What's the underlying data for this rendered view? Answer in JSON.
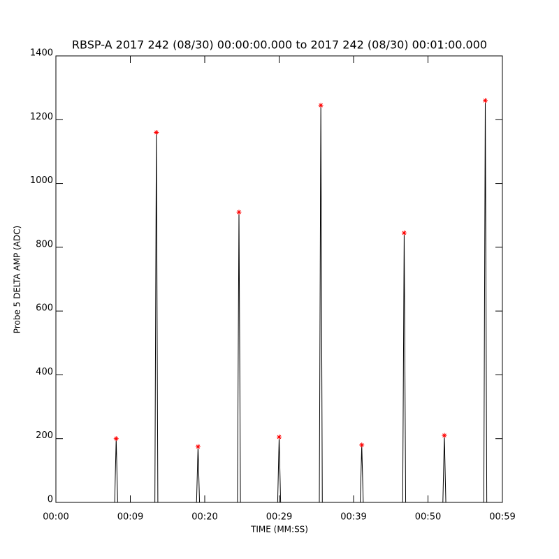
{
  "chart_data": {
    "type": "line",
    "title": "RBSP-A 2017 242 (08/30) 00:00:00.000 to 2017 242 (08/30) 00:01:00.000",
    "x_label": "TIME (MM:SS)",
    "y_label": "Probe 5 DELTA AMP (ADC)",
    "xlim": [
      0,
      60
    ],
    "xticks": [
      {
        "value": 0,
        "label": "00:00"
      },
      {
        "value": 10,
        "label": "00:09"
      },
      {
        "value": 20,
        "label": "00:20"
      },
      {
        "value": 30,
        "label": "00:29"
      },
      {
        "value": 40,
        "label": "00:39"
      },
      {
        "value": 50,
        "label": "00:50"
      },
      {
        "value": 60,
        "label": "00:59"
      }
    ],
    "ylim": [
      0,
      1400
    ],
    "yticks": [
      0,
      200,
      400,
      600,
      800,
      1000,
      1200,
      1400
    ],
    "series": [
      {
        "color": "#000000",
        "style": "line",
        "x": [
          0,
          7.9,
          8.1,
          8.3,
          13.3,
          13.5,
          13.7,
          18.9,
          19.1,
          19.3,
          24.4,
          24.6,
          24.8,
          29.8,
          30.0,
          30.2,
          35.4,
          35.6,
          35.8,
          40.9,
          41.1,
          41.3,
          46.6,
          46.8,
          47.0,
          52.0,
          52.2,
          52.4,
          57.5,
          57.7,
          57.9,
          60
        ],
        "values": [
          0,
          0,
          200,
          0,
          0,
          1160,
          0,
          0,
          175,
          0,
          0,
          910,
          0,
          0,
          205,
          0,
          0,
          1245,
          0,
          0,
          180,
          0,
          0,
          845,
          0,
          0,
          210,
          0,
          0,
          1260,
          0,
          0
        ]
      },
      {
        "color": "#ff0000",
        "style": "star",
        "x": [
          8.1,
          13.5,
          19.1,
          24.6,
          30.0,
          35.6,
          41.1,
          46.8,
          52.2,
          57.7
        ],
        "values": [
          200,
          1160,
          175,
          910,
          205,
          1245,
          180,
          845,
          210,
          1260
        ]
      }
    ]
  }
}
